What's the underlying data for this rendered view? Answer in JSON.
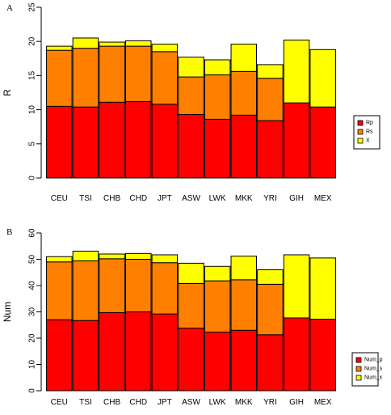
{
  "chart_data": [
    {
      "type": "bar",
      "stacked": true,
      "panel_label": "A",
      "ylabel": "R",
      "categories": [
        "CEU",
        "TSI",
        "CHB",
        "CHD",
        "JPT",
        "ASW",
        "LWK",
        "MKK",
        "YRI",
        "GIH",
        "MEX"
      ],
      "series": [
        {
          "name": "Rp",
          "color": "#ff0000",
          "values": [
            10.5,
            10.4,
            11.1,
            11.2,
            10.8,
            9.3,
            8.6,
            9.2,
            8.4,
            11.0,
            10.4
          ]
        },
        {
          "name": "Rs",
          "color": "#ff8000",
          "values": [
            8.2,
            8.6,
            8.2,
            8.1,
            7.7,
            5.5,
            6.5,
            6.4,
            6.2,
            0,
            0
          ]
        },
        {
          "name": "X",
          "color": "#ffff00",
          "values": [
            0.6,
            1.5,
            0.6,
            0.8,
            1.1,
            2.9,
            2.2,
            4.0,
            2.0,
            9.2,
            8.4
          ]
        }
      ],
      "ylim": [
        0,
        25
      ],
      "yticks": [
        0,
        5,
        10,
        15,
        20,
        25
      ],
      "legend_position": "right"
    },
    {
      "type": "bar",
      "stacked": true,
      "panel_label": "B",
      "ylabel": "Num",
      "categories": [
        "CEU",
        "TSI",
        "CHB",
        "CHD",
        "JPT",
        "ASW",
        "LWK",
        "MKK",
        "YRI",
        "GIH",
        "MEX"
      ],
      "series": [
        {
          "name": "Num_p",
          "color": "#ff0000",
          "values": [
            27,
            26.7,
            29.7,
            30,
            29.2,
            23.8,
            22.3,
            23,
            21.3,
            27.7,
            27.2
          ]
        },
        {
          "name": "Num_s",
          "color": "#ff8000",
          "values": [
            22,
            22.7,
            20.5,
            20,
            19.5,
            17,
            19.5,
            19.2,
            19.2,
            0,
            0
          ]
        },
        {
          "name": "Num_x",
          "color": "#ffff00",
          "values": [
            2,
            3.7,
            1.8,
            2.2,
            3,
            7.7,
            5.5,
            9,
            5.5,
            24,
            23.3
          ]
        }
      ],
      "ylim": [
        0,
        60
      ],
      "yticks": [
        0,
        10,
        20,
        30,
        40,
        50,
        60
      ],
      "legend_position": "right"
    }
  ]
}
